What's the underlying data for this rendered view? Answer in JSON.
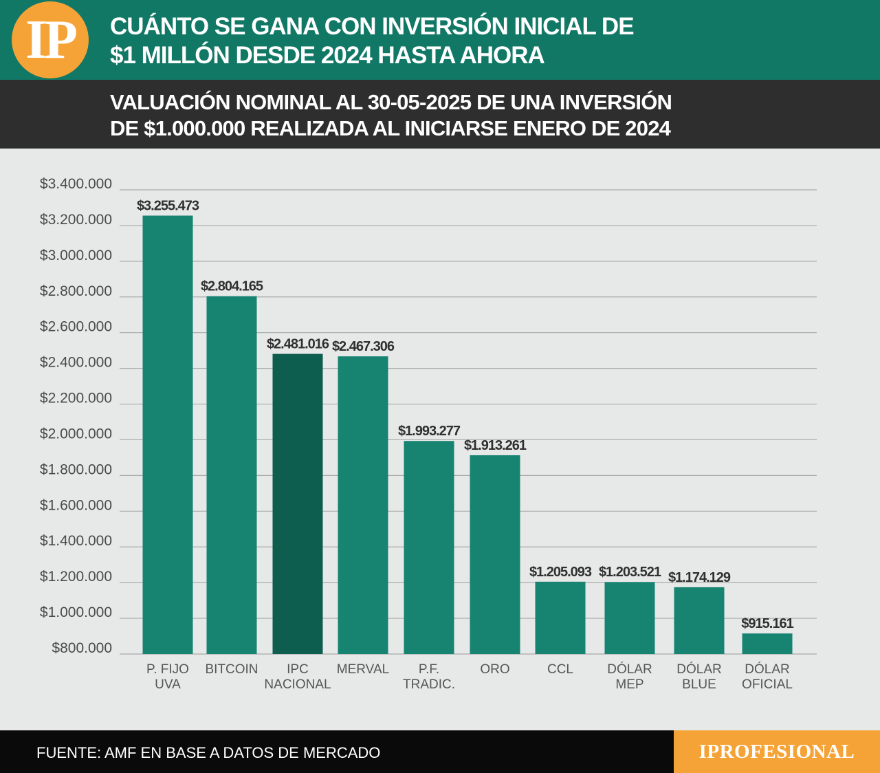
{
  "header": {
    "logo_text": "IP",
    "title_line1": "CUÁNTO SE GANA CON INVERSIÓN INICIAL DE",
    "title_line2": "$1 MILLÓN DESDE 2024 HASTA AHORA"
  },
  "subheader": {
    "line1": "VALUACIÓN NOMINAL AL 30-05-2025 DE UNA INVERSIÓN",
    "line2": "DE $1.000.000 REALIZADA AL INICIARSE ENERO DE 2024"
  },
  "colors": {
    "header_bg": "#127866",
    "subheader_bg": "#2e2e2e",
    "chart_bg": "#e7e8e8",
    "bar": "#168471",
    "bar_highlight": "#0e5e50",
    "grid": "#a9abab",
    "brand_orange": "#f5a336"
  },
  "chart_data": {
    "type": "bar",
    "categories": [
      [
        "P. FIJO",
        "UVA"
      ],
      [
        "BITCOIN"
      ],
      [
        "IPC",
        "NACIONAL"
      ],
      [
        "MERVAL"
      ],
      [
        "P.F.",
        "TRADIC."
      ],
      [
        "ORO"
      ],
      [
        "CCL"
      ],
      [
        "DÓLAR",
        "MEP"
      ],
      [
        "DÓLAR",
        "BLUE"
      ],
      [
        "DÓLAR",
        "OFICIAL"
      ]
    ],
    "values": [
      3255473,
      2804165,
      2481016,
      2467306,
      1993277,
      1913261,
      1205093,
      1203521,
      1174129,
      915161
    ],
    "value_labels": [
      "$3.255.473",
      "$2.804.165",
      "$2.481.016",
      "$2.467.306",
      "$1.993.277",
      "$1.913.261",
      "$1.205.093",
      "$1.203.521",
      "$1.174.129",
      "$915.161"
    ],
    "highlight_index": 2,
    "ylim": [
      800000,
      3400000
    ],
    "yticks": [
      800000,
      1000000,
      1200000,
      1400000,
      1600000,
      1800000,
      2000000,
      2200000,
      2400000,
      2600000,
      2800000,
      3000000,
      3200000,
      3400000
    ],
    "ytick_labels": [
      "$800.000",
      "$1.000.000",
      "$1.200.000",
      "$1.400.000",
      "$1.600.000",
      "$1.800.000",
      "$2.000.000",
      "$2.200.000",
      "$2.400.000",
      "$2.600.000",
      "$2.800.000",
      "$3.000.000",
      "$3.200.000",
      "$3.400.000"
    ],
    "grid": true,
    "legend": "none"
  },
  "footer": {
    "source": "FUENTE: AMF EN BASE A DATOS DE MERCADO",
    "brand": "IPROFESIONAL"
  }
}
